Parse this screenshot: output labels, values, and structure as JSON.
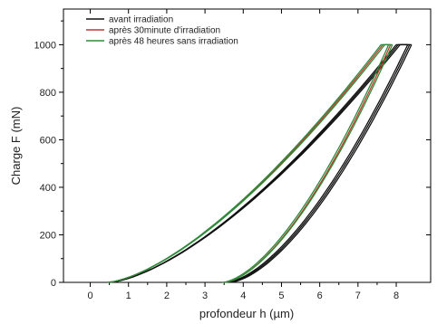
{
  "chart_data": {
    "type": "line",
    "xlabel": "profondeur h (µm)",
    "ylabel": "Charge F (mN)",
    "xlim": [
      -0.7,
      8.9
    ],
    "ylim": [
      0,
      1150
    ],
    "xticks": [
      0,
      1,
      2,
      3,
      4,
      5,
      6,
      7,
      8
    ],
    "yticks": [
      0,
      200,
      400,
      600,
      800,
      1000
    ],
    "legend_position": "top-left",
    "series": [
      {
        "name": "avant irradiation",
        "color": "#111111",
        "curves": [
          {
            "loading": {
              "start": 0.5,
              "end": 8.0,
              "peak": 1000
            },
            "unloading": {
              "end": 8.3,
              "residual": 3.55
            }
          },
          {
            "loading": {
              "start": 0.5,
              "end": 8.05,
              "peak": 1000
            },
            "unloading": {
              "end": 8.35,
              "residual": 3.6
            }
          },
          {
            "loading": {
              "start": 0.5,
              "end": 8.1,
              "peak": 1000
            },
            "unloading": {
              "end": 8.4,
              "residual": 3.65
            }
          }
        ]
      },
      {
        "name": "après 30minute d'irradiation",
        "color": "#c0392b",
        "curves": [
          {
            "loading": {
              "start": 0.45,
              "end": 7.65,
              "peak": 1000
            },
            "unloading": {
              "end": 7.85,
              "residual": 3.5
            }
          }
        ]
      },
      {
        "name": "après 48 heures sans irradiation",
        "color": "#2e8b3a",
        "curves": [
          {
            "loading": {
              "start": 0.45,
              "end": 7.6,
              "peak": 1000
            },
            "unloading": {
              "end": 7.8,
              "residual": 3.45
            }
          },
          {
            "loading": {
              "start": 0.45,
              "end": 7.7,
              "peak": 1000
            },
            "unloading": {
              "end": 7.9,
              "residual": 3.5
            }
          }
        ]
      }
    ]
  }
}
